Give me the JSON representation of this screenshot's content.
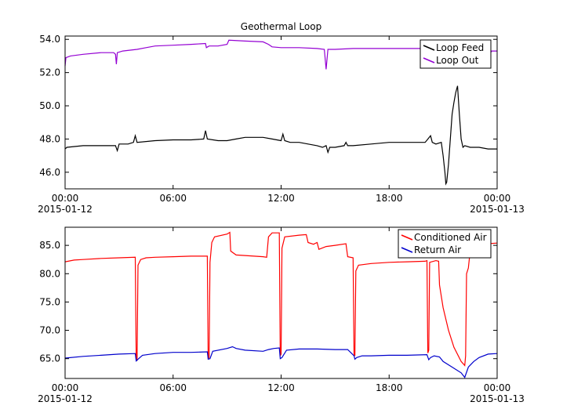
{
  "chart_data": [
    {
      "type": "line",
      "title": "Geothermal Loop",
      "xlabel": "",
      "ylabel": "",
      "x_range_hours": [
        0,
        24
      ],
      "ylim": [
        45,
        54.2
      ],
      "x_ticks": [
        {
          "value": 0,
          "label": "00:00",
          "date": "2015-01-12"
        },
        {
          "value": 6,
          "label": "06:00",
          "date": ""
        },
        {
          "value": 12,
          "label": "12:00",
          "date": ""
        },
        {
          "value": 18,
          "label": "18:00",
          "date": ""
        },
        {
          "value": 24,
          "label": "00:00",
          "date": "2015-01-13"
        }
      ],
      "y_ticks": [
        {
          "value": 46,
          "label": "46.0"
        },
        {
          "value": 48,
          "label": "48.0"
        },
        {
          "value": 50,
          "label": "50.0"
        },
        {
          "value": 52,
          "label": "52.0"
        },
        {
          "value": 54,
          "label": "54.0"
        }
      ],
      "legend": "top-right",
      "grid": false,
      "series": [
        {
          "name": "Loop Feed",
          "color": "#000000",
          "points": [
            [
              0,
              47.4
            ],
            [
              0.1,
              47.5
            ],
            [
              1,
              47.6
            ],
            [
              2,
              47.6
            ],
            [
              2.8,
              47.6
            ],
            [
              2.9,
              47.3
            ],
            [
              3.0,
              47.7
            ],
            [
              3.5,
              47.7
            ],
            [
              3.8,
              47.8
            ],
            [
              3.9,
              48.2
            ],
            [
              4.0,
              47.8
            ],
            [
              5,
              47.9
            ],
            [
              6,
              47.95
            ],
            [
              7,
              47.95
            ],
            [
              7.7,
              48.0
            ],
            [
              7.8,
              48.5
            ],
            [
              7.9,
              48.0
            ],
            [
              8.5,
              47.9
            ],
            [
              9,
              47.9
            ],
            [
              9.5,
              48.0
            ],
            [
              10,
              48.1
            ],
            [
              11,
              48.1
            ],
            [
              11.5,
              48.0
            ],
            [
              12,
              47.9
            ],
            [
              12.1,
              48.3
            ],
            [
              12.2,
              47.9
            ],
            [
              12.5,
              47.8
            ],
            [
              13,
              47.8
            ],
            [
              13.5,
              47.7
            ],
            [
              14,
              47.6
            ],
            [
              14.3,
              47.5
            ],
            [
              14.5,
              47.6
            ],
            [
              14.6,
              47.2
            ],
            [
              14.7,
              47.5
            ],
            [
              15,
              47.5
            ],
            [
              15.5,
              47.6
            ],
            [
              15.6,
              47.8
            ],
            [
              15.7,
              47.6
            ],
            [
              16,
              47.6
            ],
            [
              17,
              47.7
            ],
            [
              18,
              47.8
            ],
            [
              19,
              47.8
            ],
            [
              20,
              47.8
            ],
            [
              20.3,
              48.2
            ],
            [
              20.4,
              47.8
            ],
            [
              20.6,
              47.7
            ],
            [
              20.9,
              47.8
            ],
            [
              21.0,
              47.0
            ],
            [
              21.1,
              46.0
            ],
            [
              21.15,
              45.3
            ],
            [
              21.2,
              45.4
            ],
            [
              21.3,
              46.5
            ],
            [
              21.4,
              48.0
            ],
            [
              21.5,
              49.5
            ],
            [
              21.6,
              50.2
            ],
            [
              21.7,
              50.8
            ],
            [
              21.8,
              51.2
            ],
            [
              21.9,
              49.5
            ],
            [
              22.0,
              48.0
            ],
            [
              22.1,
              47.5
            ],
            [
              22.2,
              47.6
            ],
            [
              22.5,
              47.5
            ],
            [
              23,
              47.5
            ],
            [
              23.5,
              47.4
            ],
            [
              24,
              47.4
            ]
          ]
        },
        {
          "name": "Loop Out",
          "color": "#9400d3",
          "points": [
            [
              0,
              52.4
            ],
            [
              0.05,
              52.9
            ],
            [
              0.3,
              53.0
            ],
            [
              1,
              53.1
            ],
            [
              2,
              53.2
            ],
            [
              2.7,
              53.2
            ],
            [
              2.8,
              53.1
            ],
            [
              2.85,
              52.5
            ],
            [
              2.9,
              53.2
            ],
            [
              3.2,
              53.3
            ],
            [
              4,
              53.4
            ],
            [
              4.5,
              53.5
            ],
            [
              5,
              53.6
            ],
            [
              6,
              53.65
            ],
            [
              7,
              53.7
            ],
            [
              7.8,
              53.75
            ],
            [
              7.85,
              53.5
            ],
            [
              8,
              53.6
            ],
            [
              8.5,
              53.6
            ],
            [
              9,
              53.7
            ],
            [
              9.1,
              53.95
            ],
            [
              10,
              53.9
            ],
            [
              11,
              53.85
            ],
            [
              11.3,
              53.7
            ],
            [
              11.5,
              53.55
            ],
            [
              12,
              53.5
            ],
            [
              13,
              53.5
            ],
            [
              14,
              53.45
            ],
            [
              14.4,
              53.4
            ],
            [
              14.5,
              52.2
            ],
            [
              14.6,
              53.4
            ],
            [
              15,
              53.4
            ],
            [
              16,
              53.45
            ],
            [
              17,
              53.45
            ],
            [
              18,
              53.45
            ],
            [
              19,
              53.45
            ],
            [
              20,
              53.45
            ],
            [
              20.5,
              53.45
            ],
            [
              21,
              53.5
            ],
            [
              21.3,
              53.7
            ],
            [
              21.6,
              53.9
            ],
            [
              21.8,
              53.9
            ],
            [
              22,
              53.6
            ],
            [
              22.5,
              53.5
            ],
            [
              23,
              53.4
            ],
            [
              23.3,
              53.3
            ],
            [
              23.5,
              53.0
            ],
            [
              23.7,
              53.3
            ],
            [
              24,
              53.3
            ]
          ]
        }
      ]
    },
    {
      "type": "line",
      "title": "",
      "xlabel": "",
      "ylabel": "",
      "x_range_hours": [
        0,
        24
      ],
      "ylim": [
        61.5,
        88.2
      ],
      "x_ticks": [
        {
          "value": 0,
          "label": "00:00",
          "date": "2015-01-12"
        },
        {
          "value": 6,
          "label": "06:00",
          "date": ""
        },
        {
          "value": 12,
          "label": "12:00",
          "date": ""
        },
        {
          "value": 18,
          "label": "18:00",
          "date": ""
        },
        {
          "value": 24,
          "label": "00:00",
          "date": "2015-01-13"
        }
      ],
      "y_ticks": [
        {
          "value": 65,
          "label": "65.0"
        },
        {
          "value": 70,
          "label": "70.0"
        },
        {
          "value": 75,
          "label": "75.0"
        },
        {
          "value": 80,
          "label": "80.0"
        },
        {
          "value": 85,
          "label": "85.0"
        }
      ],
      "legend": "top-right",
      "grid": false,
      "series": [
        {
          "name": "Conditioned Air",
          "color": "#ff0000",
          "points": [
            [
              0,
              82.1
            ],
            [
              0.5,
              82.4
            ],
            [
              1,
              82.5
            ],
            [
              2,
              82.7
            ],
            [
              3,
              82.8
            ],
            [
              3.9,
              82.9
            ],
            [
              3.95,
              65.0
            ],
            [
              4.0,
              64.8
            ],
            [
              4.05,
              81.5
            ],
            [
              4.2,
              82.5
            ],
            [
              4.5,
              82.8
            ],
            [
              5,
              82.9
            ],
            [
              6,
              83.0
            ],
            [
              7,
              83.1
            ],
            [
              7.9,
              83.1
            ],
            [
              7.95,
              65.0
            ],
            [
              8.0,
              65.2
            ],
            [
              8.05,
              82.0
            ],
            [
              8.15,
              85.5
            ],
            [
              8.3,
              86.5
            ],
            [
              9,
              87.0
            ],
            [
              9.15,
              87.3
            ],
            [
              9.2,
              84.0
            ],
            [
              9.5,
              83.3
            ],
            [
              10,
              83.2
            ],
            [
              11,
              83.0
            ],
            [
              11.2,
              82.9
            ],
            [
              11.3,
              86.5
            ],
            [
              11.5,
              87.2
            ],
            [
              11.9,
              87.2
            ],
            [
              11.95,
              65.5
            ],
            [
              12.0,
              65.8
            ],
            [
              12.05,
              84.5
            ],
            [
              12.2,
              86.5
            ],
            [
              13,
              86.8
            ],
            [
              13.4,
              86.9
            ],
            [
              13.5,
              85.5
            ],
            [
              13.8,
              85.2
            ],
            [
              14,
              85.5
            ],
            [
              14.1,
              84.3
            ],
            [
              14.5,
              84.8
            ],
            [
              15,
              85.0
            ],
            [
              15.6,
              85.3
            ],
            [
              15.7,
              83.0
            ],
            [
              16.0,
              82.8
            ],
            [
              16.05,
              65.8
            ],
            [
              16.1,
              65.5
            ],
            [
              16.15,
              80.5
            ],
            [
              16.3,
              81.5
            ],
            [
              17,
              81.8
            ],
            [
              18,
              82.0
            ],
            [
              19,
              82.1
            ],
            [
              20,
              82.2
            ],
            [
              20.1,
              82.3
            ],
            [
              20.15,
              66.0
            ],
            [
              20.2,
              66.5
            ],
            [
              20.25,
              82.0
            ],
            [
              20.6,
              82.3
            ],
            [
              20.75,
              82.2
            ],
            [
              20.8,
              78.0
            ],
            [
              21.0,
              74.0
            ],
            [
              21.3,
              70.0
            ],
            [
              21.6,
              67.0
            ],
            [
              22.0,
              64.5
            ],
            [
              22.2,
              63.8
            ],
            [
              22.25,
              65.5
            ],
            [
              22.3,
              80.0
            ],
            [
              22.4,
              81.0
            ],
            [
              22.5,
              84.0
            ],
            [
              22.7,
              84.5
            ],
            [
              23,
              85.0
            ],
            [
              23.5,
              85.3
            ],
            [
              24,
              85.4
            ]
          ]
        },
        {
          "name": "Return Air",
          "color": "#0000cc",
          "points": [
            [
              0,
              65.1
            ],
            [
              1,
              65.4
            ],
            [
              2,
              65.6
            ],
            [
              3,
              65.8
            ],
            [
              3.9,
              65.9
            ],
            [
              3.95,
              64.6
            ],
            [
              4.05,
              64.9
            ],
            [
              4.3,
              65.6
            ],
            [
              5,
              65.9
            ],
            [
              6,
              66.1
            ],
            [
              7,
              66.1
            ],
            [
              7.9,
              66.2
            ],
            [
              7.95,
              64.9
            ],
            [
              8.05,
              65.0
            ],
            [
              8.2,
              66.3
            ],
            [
              9,
              66.8
            ],
            [
              9.3,
              67.1
            ],
            [
              9.5,
              66.8
            ],
            [
              10,
              66.5
            ],
            [
              11,
              66.3
            ],
            [
              11.3,
              66.6
            ],
            [
              11.6,
              66.8
            ],
            [
              11.9,
              66.9
            ],
            [
              11.95,
              65.0
            ],
            [
              12.05,
              65.2
            ],
            [
              12.3,
              66.5
            ],
            [
              13,
              66.7
            ],
            [
              14,
              66.7
            ],
            [
              15,
              66.6
            ],
            [
              15.7,
              66.6
            ],
            [
              16.05,
              65.5
            ],
            [
              16.1,
              64.9
            ],
            [
              16.2,
              65.2
            ],
            [
              16.5,
              65.5
            ],
            [
              17,
              65.5
            ],
            [
              18,
              65.6
            ],
            [
              19,
              65.6
            ],
            [
              20.1,
              65.7
            ],
            [
              20.2,
              64.8
            ],
            [
              20.3,
              65.2
            ],
            [
              20.5,
              65.5
            ],
            [
              20.8,
              65.3
            ],
            [
              21,
              64.5
            ],
            [
              21.5,
              63.5
            ],
            [
              22,
              62.5
            ],
            [
              22.2,
              61.7
            ],
            [
              22.4,
              63.5
            ],
            [
              22.7,
              64.5
            ],
            [
              23,
              65.2
            ],
            [
              23.5,
              65.8
            ],
            [
              24,
              65.9
            ]
          ]
        }
      ]
    }
  ]
}
